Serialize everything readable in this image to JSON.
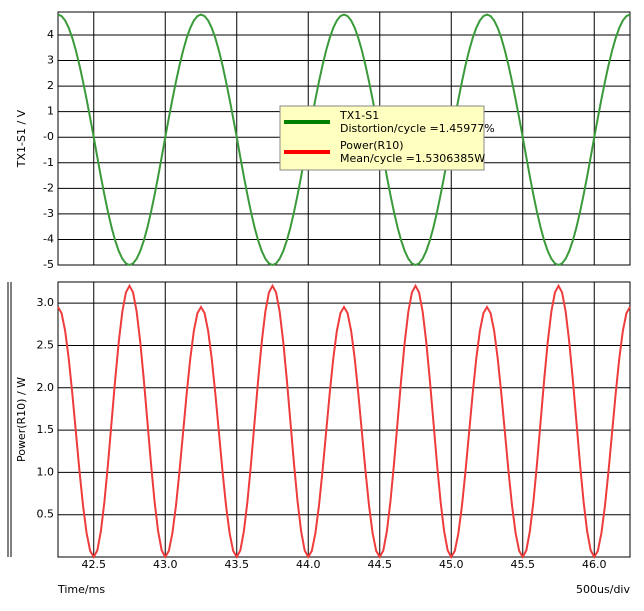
{
  "chart_data": [
    {
      "type": "line",
      "ylabel": "TX1-S1 / V",
      "xlim": [
        42.25,
        46.25
      ],
      "xticks": [
        42.5,
        {
          "value": 43.0,
          "label": "43.0"
        },
        43.5,
        {
          "value": 44.0,
          "label": "44.0"
        },
        44.5,
        {
          "value": 45.0,
          "label": "45.0"
        },
        45.5,
        {
          "value": 46.0,
          "label": "46.0"
        }
      ],
      "ylim": [
        -5,
        4.9
      ],
      "yticks": [
        -5,
        -4,
        -3,
        -2,
        -1,
        {
          "value": 0,
          "label": "-0"
        },
        1,
        2,
        3,
        4
      ],
      "grid": true,
      "x": [
        42.25,
        42.275,
        42.3,
        42.325,
        42.35,
        42.375,
        42.4,
        42.425,
        42.45,
        42.475,
        42.5,
        42.525,
        42.55,
        42.575,
        42.6,
        42.625,
        42.65,
        42.675,
        42.7,
        42.725,
        42.75,
        42.775,
        42.8,
        42.825,
        42.85,
        42.875,
        42.9,
        42.925,
        42.95,
        42.975,
        43.0,
        43.025,
        43.05,
        43.075,
        43.1,
        43.125,
        43.15,
        43.175,
        43.2,
        43.225,
        43.25,
        43.275,
        43.3,
        43.325,
        43.35,
        43.375,
        43.4,
        43.425,
        43.45,
        43.475,
        43.5,
        43.525,
        43.55,
        43.575,
        43.6,
        43.625,
        43.65,
        43.675,
        43.7,
        43.725,
        43.75,
        43.775,
        43.8,
        43.825,
        43.85,
        43.875,
        43.9,
        43.925,
        43.95,
        43.975,
        44.0,
        44.025,
        44.05,
        44.075,
        44.1,
        44.125,
        44.15,
        44.175,
        44.2,
        44.225,
        44.25,
        44.275,
        44.3,
        44.325,
        44.35,
        44.375,
        44.4,
        44.425,
        44.45,
        44.475,
        44.5,
        44.525,
        44.55,
        44.575,
        44.6,
        44.625,
        44.65,
        44.675,
        44.7,
        44.725,
        44.75,
        44.775,
        44.8,
        44.825,
        44.85,
        44.875,
        44.9,
        44.925,
        44.95,
        44.975,
        45.0,
        45.025,
        45.05,
        45.075,
        45.1,
        45.125,
        45.15,
        45.175,
        45.2,
        45.225,
        45.25,
        45.275,
        45.3,
        45.325,
        45.35,
        45.375,
        45.4,
        45.425,
        45.45,
        45.475,
        45.5,
        45.525,
        45.55,
        45.575,
        45.6,
        45.625,
        45.65,
        45.675,
        45.7,
        45.725,
        45.75,
        45.775,
        45.8,
        45.825,
        45.85,
        45.875,
        45.9,
        45.925,
        45.95,
        45.975,
        46.0,
        46.025,
        46.05,
        46.075,
        46.1,
        46.125,
        46.15,
        46.175,
        46.2,
        46.225,
        46.25
      ],
      "series": [
        {
          "name": "TX1-S1",
          "note": "Distortion/cycle =1.45977%",
          "color": "#3a9a3a",
          "legend_color": "#008000",
          "values": [
            4.8,
            4.741,
            4.565,
            4.277,
            3.883,
            3.394,
            2.821,
            2.179,
            1.483,
            0.751,
            0,
            -0.782,
            -1.545,
            -2.27,
            -2.939,
            -3.536,
            -4.045,
            -4.455,
            -4.756,
            -4.939,
            -5,
            -4.939,
            -4.756,
            -4.455,
            -4.045,
            -3.536,
            -2.939,
            -2.27,
            -1.545,
            -0.782,
            0,
            0.751,
            1.483,
            2.179,
            2.821,
            3.394,
            3.883,
            4.277,
            4.565,
            4.741,
            4.8,
            4.741,
            4.565,
            4.277,
            3.883,
            3.394,
            2.821,
            2.179,
            1.483,
            0.751,
            0,
            -0.782,
            -1.545,
            -2.27,
            -2.939,
            -3.536,
            -4.045,
            -4.455,
            -4.756,
            -4.939,
            -5,
            -4.939,
            -4.756,
            -4.455,
            -4.045,
            -3.536,
            -2.939,
            -2.27,
            -1.545,
            -0.782,
            0,
            0.751,
            1.483,
            2.179,
            2.821,
            3.394,
            3.883,
            4.277,
            4.565,
            4.741,
            4.8,
            4.741,
            4.565,
            4.277,
            3.883,
            3.394,
            2.821,
            2.179,
            1.483,
            0.751,
            0,
            -0.782,
            -1.545,
            -2.27,
            -2.939,
            -3.536,
            -4.045,
            -4.455,
            -4.756,
            -4.939,
            -5,
            -4.939,
            -4.756,
            -4.455,
            -4.045,
            -3.536,
            -2.939,
            -2.27,
            -1.545,
            -0.782,
            0,
            0.751,
            1.483,
            2.179,
            2.821,
            3.394,
            3.883,
            4.277,
            4.565,
            4.741,
            4.8,
            4.741,
            4.565,
            4.277,
            3.883,
            3.394,
            2.821,
            2.179,
            1.483,
            0.751,
            0,
            -0.782,
            -1.545,
            -2.27,
            -2.939,
            -3.536,
            -4.045,
            -4.455,
            -4.756,
            -4.939,
            -5,
            -4.939,
            -4.756,
            -4.455,
            -4.045,
            -3.536,
            -2.939,
            -2.27,
            -1.545,
            -0.782,
            0,
            0.751,
            1.483,
            2.179,
            2.821,
            3.394,
            3.883,
            4.277,
            4.565,
            4.741,
            4.8
          ]
        }
      ]
    },
    {
      "type": "line",
      "ylabel": "Power(R10) / W",
      "xlabel": "Time/ms",
      "xdiv": "500us/div",
      "xlim": [
        42.25,
        46.25
      ],
      "xticks": [
        42.5,
        {
          "value": 43.0,
          "label": "43.0"
        },
        43.5,
        {
          "value": 44.0,
          "label": "44.0"
        },
        44.5,
        {
          "value": 45.0,
          "label": "45.0"
        },
        45.5,
        {
          "value": 46.0,
          "label": "46.0"
        }
      ],
      "ylim": [
        0,
        3.25
      ],
      "yticks": [
        0.5,
        {
          "value": 1.0,
          "label": "1.0"
        },
        1.5,
        {
          "value": 2.0,
          "label": "2.0"
        },
        2.5,
        {
          "value": 3.0,
          "label": "3.0"
        }
      ],
      "grid": true,
      "x": [
        42.25,
        42.275,
        42.3,
        42.325,
        42.35,
        42.375,
        42.4,
        42.425,
        42.45,
        42.475,
        42.5,
        42.525,
        42.55,
        42.575,
        42.6,
        42.625,
        42.65,
        42.675,
        42.7,
        42.725,
        42.75,
        42.775,
        42.8,
        42.825,
        42.85,
        42.875,
        42.9,
        42.925,
        42.95,
        42.975,
        43.0,
        43.025,
        43.05,
        43.075,
        43.1,
        43.125,
        43.15,
        43.175,
        43.2,
        43.225,
        43.25,
        43.275,
        43.3,
        43.325,
        43.35,
        43.375,
        43.4,
        43.425,
        43.45,
        43.475,
        43.5,
        43.525,
        43.55,
        43.575,
        43.6,
        43.625,
        43.65,
        43.675,
        43.7,
        43.725,
        43.75,
        43.775,
        43.8,
        43.825,
        43.85,
        43.875,
        43.9,
        43.925,
        43.95,
        43.975,
        44.0,
        44.025,
        44.05,
        44.075,
        44.1,
        44.125,
        44.15,
        44.175,
        44.2,
        44.225,
        44.25,
        44.275,
        44.3,
        44.325,
        44.35,
        44.375,
        44.4,
        44.425,
        44.45,
        44.475,
        44.5,
        44.525,
        44.55,
        44.575,
        44.6,
        44.625,
        44.65,
        44.675,
        44.7,
        44.725,
        44.75,
        44.775,
        44.8,
        44.825,
        44.85,
        44.875,
        44.9,
        44.925,
        44.95,
        44.975,
        45.0,
        45.025,
        45.05,
        45.075,
        45.1,
        45.125,
        45.15,
        45.175,
        45.2,
        45.225,
        45.25,
        45.275,
        45.3,
        45.325,
        45.35,
        45.375,
        45.4,
        45.425,
        45.45,
        45.475,
        45.5,
        45.525,
        45.55,
        45.575,
        45.6,
        45.625,
        45.65,
        45.675,
        45.7,
        45.725,
        45.75,
        45.775,
        45.8,
        45.825,
        45.85,
        45.875,
        45.9,
        45.925,
        45.95,
        45.975,
        46.0,
        46.025,
        46.05,
        46.075,
        46.1,
        46.125,
        46.15,
        46.175,
        46.2,
        46.225,
        46.25
      ],
      "series": [
        {
          "name": "Power(R10)",
          "note": "Mean/cycle =1.5306385W",
          "color": "#ee3b3b",
          "legend_color": "#ff0000",
          "values": [
            2.954,
            2.882,
            2.672,
            2.345,
            1.933,
            1.477,
            1.02,
            0.609,
            0.282,
            0.072,
            0,
            0.078,
            0.306,
            0.661,
            1.107,
            1.603,
            2.098,
            2.544,
            2.9,
            3.127,
            3.205,
            3.127,
            2.9,
            2.544,
            2.098,
            1.603,
            1.107,
            0.661,
            0.306,
            0.078,
            0,
            0.072,
            0.282,
            0.609,
            1.02,
            1.477,
            1.933,
            2.345,
            2.672,
            2.882,
            2.954,
            2.882,
            2.672,
            2.345,
            1.933,
            1.477,
            1.02,
            0.609,
            0.282,
            0.072,
            0,
            0.078,
            0.306,
            0.661,
            1.107,
            1.603,
            2.098,
            2.544,
            2.9,
            3.127,
            3.205,
            3.127,
            2.9,
            2.544,
            2.098,
            1.603,
            1.107,
            0.661,
            0.306,
            0.078,
            0,
            0.072,
            0.282,
            0.609,
            1.02,
            1.477,
            1.933,
            2.345,
            2.672,
            2.882,
            2.954,
            2.882,
            2.672,
            2.345,
            1.933,
            1.477,
            1.02,
            0.609,
            0.282,
            0.072,
            0,
            0.078,
            0.306,
            0.661,
            1.107,
            1.603,
            2.098,
            2.544,
            2.9,
            3.127,
            3.205,
            3.127,
            2.9,
            2.544,
            2.098,
            1.603,
            1.107,
            0.661,
            0.306,
            0.078,
            0,
            0.072,
            0.282,
            0.609,
            1.02,
            1.477,
            1.933,
            2.345,
            2.672,
            2.882,
            2.954,
            2.882,
            2.672,
            2.345,
            1.933,
            1.477,
            1.02,
            0.609,
            0.282,
            0.072,
            0,
            0.078,
            0.306,
            0.661,
            1.107,
            1.603,
            2.098,
            2.544,
            2.9,
            3.127,
            3.205,
            3.127,
            2.9,
            2.544,
            2.098,
            1.603,
            1.107,
            0.661,
            0.306,
            0.078,
            0,
            0.072,
            0.282,
            0.609,
            1.02,
            1.477,
            1.933,
            2.345,
            2.672,
            2.882,
            2.954
          ]
        }
      ]
    }
  ]
}
